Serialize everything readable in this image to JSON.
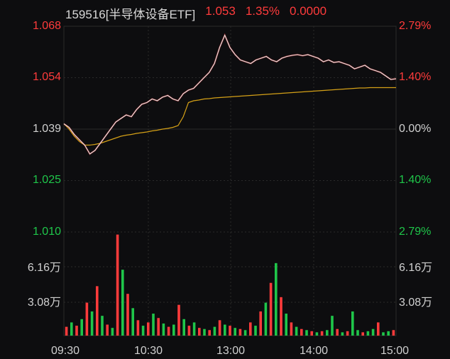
{
  "header": {
    "code": "159516[半导体设备ETF]",
    "price": "1.053",
    "change_pct": "1.35%",
    "extra": "0.0000"
  },
  "colors": {
    "up": "#ff3b3b",
    "down": "#1fc64a",
    "neutral": "#d0d0d0",
    "avg_line": "#d4a017",
    "price_line": "#e8e8e8",
    "grid": "#2a2a2a"
  },
  "price_axis": {
    "left_labels": [
      "1.068",
      "1.054",
      "1.039",
      "1.025",
      "1.010"
    ],
    "right_labels": [
      "2.79%",
      "1.40%",
      "0.00%",
      "1.40%",
      "2.79%"
    ]
  },
  "volume_axis": {
    "left_labels": [
      "6.16万",
      "3.08万"
    ],
    "right_labels": [
      "6.16万",
      "3.08万"
    ]
  },
  "time_labels": [
    "09:30",
    "10:30",
    "13:00",
    "14:00",
    "15:00"
  ],
  "chart_data": {
    "type": "line",
    "x_label": "",
    "ylim": [
      1.01,
      1.068
    ],
    "volume_ylim": [
      0,
      92400
    ],
    "series": [
      {
        "values": [
          1.0405,
          1.0395,
          1.0375,
          1.036,
          1.0345,
          1.032,
          1.033,
          1.035,
          1.037,
          1.039,
          1.041,
          1.042,
          1.043,
          1.0425,
          1.0445,
          1.046,
          1.0465,
          1.0475,
          1.047,
          1.048,
          1.0485,
          1.0475,
          1.047,
          1.049,
          1.05,
          1.0505,
          1.052,
          1.0535,
          1.055,
          1.0575,
          1.062,
          1.0655,
          1.062,
          1.06,
          1.0585,
          1.058,
          1.0575,
          1.0585,
          1.059,
          1.0595,
          1.0585,
          1.058,
          1.059,
          1.0595,
          1.0598,
          1.06,
          1.0597,
          1.06,
          1.0595,
          1.059,
          1.058,
          1.0585,
          1.0578,
          1.058,
          1.0575,
          1.057,
          1.056,
          1.0565,
          1.057,
          1.056,
          1.0555,
          1.055,
          1.054,
          1.053,
          1.0532
        ]
      },
      {
        "values": [
          1.0405,
          1.039,
          1.037,
          1.0355,
          1.0345,
          1.0345,
          1.0347,
          1.035,
          1.0355,
          1.036,
          1.0365,
          1.037,
          1.0373,
          1.0375,
          1.0378,
          1.038,
          1.0382,
          1.0385,
          1.0387,
          1.039,
          1.0392,
          1.0395,
          1.04,
          1.0425,
          1.0465,
          1.047,
          1.0472,
          1.0475,
          1.0476,
          1.0478,
          1.0479,
          1.048,
          1.0481,
          1.0482,
          1.0483,
          1.0484,
          1.0485,
          1.0486,
          1.0487,
          1.0488,
          1.0489,
          1.049,
          1.0491,
          1.0492,
          1.0493,
          1.0494,
          1.0495,
          1.0496,
          1.0497,
          1.0498,
          1.0499,
          1.05,
          1.0501,
          1.0502,
          1.0503,
          1.0504,
          1.0505,
          1.0506,
          1.0506,
          1.0507,
          1.0507,
          1.0507,
          1.0507,
          1.0507,
          1.0507
        ]
      }
    ],
    "volume": [
      [
        8000,
        1
      ],
      [
        12000,
        0
      ],
      [
        9000,
        1
      ],
      [
        15000,
        0
      ],
      [
        30000,
        1
      ],
      [
        22000,
        0
      ],
      [
        45000,
        1
      ],
      [
        18000,
        0
      ],
      [
        10000,
        1
      ],
      [
        7000,
        0
      ],
      [
        92000,
        1
      ],
      [
        60000,
        0
      ],
      [
        38000,
        1
      ],
      [
        25000,
        0
      ],
      [
        14000,
        1
      ],
      [
        9000,
        0
      ],
      [
        12000,
        1
      ],
      [
        20000,
        0
      ],
      [
        16000,
        1
      ],
      [
        11000,
        0
      ],
      [
        8000,
        1
      ],
      [
        10000,
        0
      ],
      [
        28000,
        1
      ],
      [
        15000,
        0
      ],
      [
        9000,
        1
      ],
      [
        12000,
        0
      ],
      [
        7000,
        1
      ],
      [
        6000,
        0
      ],
      [
        5000,
        1
      ],
      [
        8000,
        0
      ],
      [
        14000,
        1
      ],
      [
        10000,
        0
      ],
      [
        9000,
        1
      ],
      [
        7000,
        0
      ],
      [
        6000,
        1
      ],
      [
        5000,
        0
      ],
      [
        12000,
        1
      ],
      [
        9000,
        0
      ],
      [
        22000,
        1
      ],
      [
        30000,
        0
      ],
      [
        48000,
        1
      ],
      [
        66000,
        0
      ],
      [
        35000,
        1
      ],
      [
        20000,
        0
      ],
      [
        12000,
        1
      ],
      [
        8000,
        0
      ],
      [
        6000,
        1
      ],
      [
        5000,
        0
      ],
      [
        4000,
        1
      ],
      [
        3000,
        0
      ],
      [
        4000,
        1
      ],
      [
        5000,
        0
      ],
      [
        18000,
        0
      ],
      [
        6000,
        1
      ],
      [
        3000,
        0
      ],
      [
        4000,
        1
      ],
      [
        22000,
        0
      ],
      [
        5000,
        0
      ],
      [
        3000,
        1
      ],
      [
        4000,
        0
      ],
      [
        6000,
        0
      ],
      [
        12000,
        1
      ],
      [
        3000,
        0
      ],
      [
        4000,
        0
      ],
      [
        5000,
        1
      ]
    ]
  }
}
